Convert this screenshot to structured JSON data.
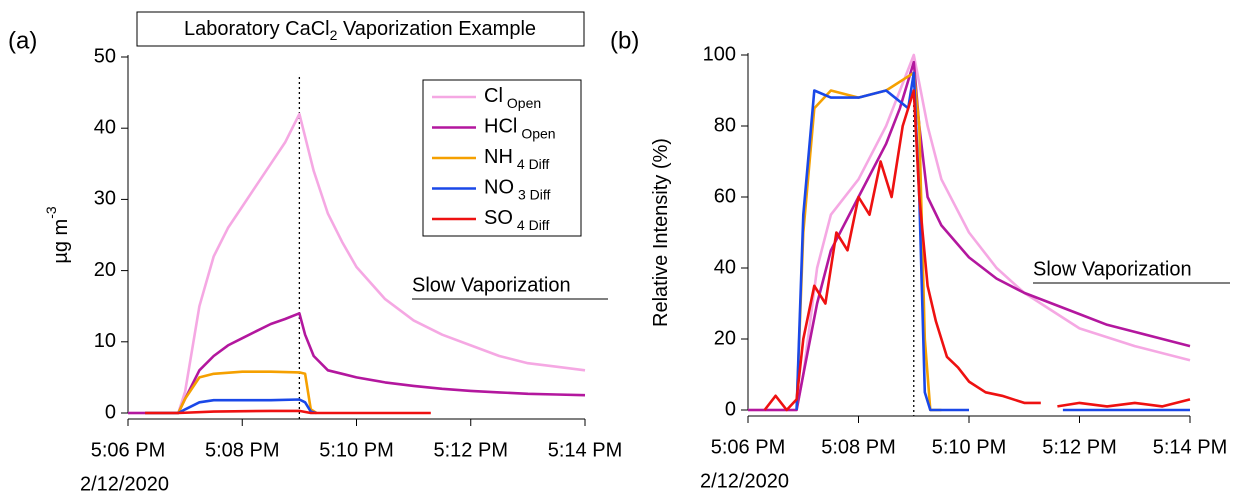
{
  "chart_data": [
    {
      "type": "line",
      "panel_label": "(a)",
      "title": {
        "text": "Laboratory CaCl",
        "subscript": "2",
        "after": " Vaporization Example"
      },
      "ylabel": "µg m",
      "ylabel_sup": "-3",
      "annotation": "Slow Vaporization",
      "date_label": "2/12/2020",
      "xlim": [
        6,
        14
      ],
      "xticks": [
        {
          "value": 6,
          "label": "5:06 PM"
        },
        {
          "value": 8,
          "label": "5:08 PM"
        },
        {
          "value": 10,
          "label": "5:10 PM"
        },
        {
          "value": 12,
          "label": "5:12 PM"
        },
        {
          "value": 14,
          "label": "5:14 PM"
        }
      ],
      "ylim": [
        0,
        50
      ],
      "yticks": [
        0,
        10,
        20,
        30,
        40,
        50
      ],
      "vline": 9,
      "legend": "upper right",
      "series": [
        {
          "name": "Cl",
          "subscript": "Open",
          "color": "#f5a8e3",
          "x": [
            6,
            6.88,
            7.0,
            7.25,
            7.5,
            7.75,
            8.0,
            8.25,
            8.5,
            8.75,
            9.0,
            9.25,
            9.5,
            9.75,
            10.0,
            10.5,
            11.0,
            11.5,
            12.0,
            12.5,
            13.0,
            13.5,
            14.0
          ],
          "values": [
            0,
            0,
            3,
            15,
            22,
            26,
            29,
            32,
            35,
            38,
            42,
            34,
            28,
            24,
            20.5,
            16,
            13,
            11,
            9.5,
            8,
            7,
            6.5,
            6
          ]
        },
        {
          "name": "HCl",
          "subscript": "Open",
          "color": "#b3179e",
          "x": [
            6,
            6.88,
            7.0,
            7.25,
            7.5,
            7.75,
            8.0,
            8.25,
            8.5,
            8.75,
            9.0,
            9.1,
            9.25,
            9.5,
            9.75,
            10.0,
            10.5,
            11.0,
            11.5,
            12.0,
            12.5,
            13.0,
            13.5,
            14.0
          ],
          "values": [
            0,
            0,
            2,
            6,
            8,
            9.5,
            10.5,
            11.5,
            12.5,
            13.2,
            14,
            11,
            8,
            6,
            5.5,
            5,
            4.3,
            3.8,
            3.4,
            3.1,
            2.9,
            2.7,
            2.6,
            2.5
          ]
        },
        {
          "name": "NH",
          "subscript": "4 Diff",
          "color": "#f5a000",
          "x": [
            6.3,
            6.88,
            7.0,
            7.25,
            7.5,
            8.0,
            8.5,
            9.0,
            9.1,
            9.2,
            9.3
          ],
          "values": [
            0,
            0,
            2,
            5,
            5.5,
            5.8,
            5.8,
            5.7,
            5.5,
            0.5,
            0
          ]
        },
        {
          "name": "NO",
          "subscript": "3 Diff",
          "color": "#1a48e8",
          "x": [
            6.3,
            6.88,
            7.0,
            7.25,
            7.5,
            8.0,
            8.5,
            9.0,
            9.1,
            9.2,
            9.3
          ],
          "values": [
            0,
            0,
            0.5,
            1.5,
            1.8,
            1.8,
            1.8,
            1.9,
            1.5,
            0.2,
            0
          ]
        },
        {
          "name": "SO",
          "subscript": "4 Diff",
          "color": "#ee1111",
          "x": [
            6.3,
            6.88,
            7.5,
            8.5,
            9.0,
            9.2,
            11.3
          ],
          "values": [
            0,
            0,
            0.2,
            0.3,
            0.3,
            0,
            0
          ]
        }
      ]
    },
    {
      "type": "line",
      "panel_label": "(b)",
      "ylabel": "Relative Intensity (%)",
      "annotation": "Slow Vaporization",
      "date_label": "2/12/2020",
      "xlim": [
        6,
        14
      ],
      "xticks": [
        {
          "value": 6,
          "label": "5:06 PM"
        },
        {
          "value": 8,
          "label": "5:08 PM"
        },
        {
          "value": 10,
          "label": "5:10 PM"
        },
        {
          "value": 12,
          "label": "5:12 PM"
        },
        {
          "value": 14,
          "label": "5:14 PM"
        }
      ],
      "ylim": [
        0,
        100
      ],
      "yticks": [
        0,
        20,
        40,
        60,
        80,
        100
      ],
      "vline": 9,
      "series": [
        {
          "color": "#f5a8e3",
          "x": [
            6,
            6.88,
            7.0,
            7.25,
            7.5,
            8.0,
            8.5,
            9.0,
            9.25,
            9.5,
            10.0,
            10.5,
            11.0,
            12.0,
            13.0,
            14.0
          ],
          "values": [
            0,
            0,
            10,
            40,
            55,
            65,
            80,
            100,
            80,
            65,
            50,
            40,
            33,
            23,
            18,
            14
          ]
        },
        {
          "color": "#b3179e",
          "x": [
            6,
            6.88,
            7.0,
            7.25,
            7.5,
            8.0,
            8.5,
            8.75,
            9.0,
            9.1,
            9.25,
            9.5,
            10.0,
            10.5,
            11.0,
            11.5,
            12.0,
            12.5,
            13.0,
            13.5,
            14.0
          ],
          "values": [
            0,
            0,
            10,
            30,
            45,
            60,
            75,
            85,
            98,
            80,
            60,
            52,
            43,
            37,
            33,
            30,
            27,
            24,
            22,
            20,
            18
          ]
        },
        {
          "color": "#f5a000",
          "x": [
            6.88,
            7.0,
            7.2,
            7.5,
            8.0,
            8.5,
            9.0,
            9.1,
            9.2,
            9.3,
            9.5
          ],
          "values": [
            0,
            50,
            85,
            90,
            88,
            90,
            95,
            80,
            20,
            0,
            0
          ]
        },
        {
          "color": "#1a48e8",
          "x": [
            6.88,
            7.0,
            7.2,
            7.5,
            8.0,
            8.5,
            8.9,
            9.0,
            9.1,
            9.2,
            9.3,
            10.0,
            10.5,
            11.7,
            14.0
          ],
          "values": [
            0,
            55,
            90,
            88,
            88,
            90,
            85,
            95,
            60,
            5,
            0,
            0,
            null,
            0,
            0
          ]
        },
        {
          "color": "#ee1111",
          "x": [
            6.3,
            6.5,
            6.7,
            6.88,
            7.0,
            7.2,
            7.4,
            7.6,
            7.8,
            8.0,
            8.2,
            8.4,
            8.6,
            8.8,
            9.0,
            9.1,
            9.25,
            9.4,
            9.6,
            9.8,
            10.0,
            10.3,
            10.6,
            11.0,
            11.3,
            11.45,
            11.6,
            12.0,
            12.5,
            13.0,
            13.5,
            14.0
          ],
          "values": [
            0,
            4,
            0,
            3,
            20,
            35,
            30,
            50,
            45,
            60,
            55,
            70,
            60,
            80,
            90,
            60,
            35,
            25,
            15,
            12,
            8,
            5,
            4,
            2,
            2,
            null,
            1,
            2,
            1,
            2,
            1,
            3
          ]
        }
      ]
    }
  ]
}
